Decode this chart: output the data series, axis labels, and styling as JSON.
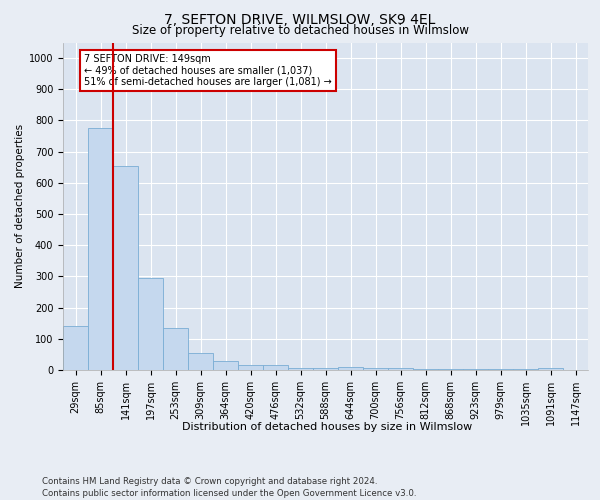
{
  "title": "7, SEFTON DRIVE, WILMSLOW, SK9 4EL",
  "subtitle": "Size of property relative to detached houses in Wilmslow",
  "xlabel": "Distribution of detached houses by size in Wilmslow",
  "ylabel": "Number of detached properties",
  "bin_labels": [
    "29sqm",
    "85sqm",
    "141sqm",
    "197sqm",
    "253sqm",
    "309sqm",
    "364sqm",
    "420sqm",
    "476sqm",
    "532sqm",
    "588sqm",
    "644sqm",
    "700sqm",
    "756sqm",
    "812sqm",
    "868sqm",
    "923sqm",
    "979sqm",
    "1035sqm",
    "1091sqm",
    "1147sqm"
  ],
  "bar_heights": [
    140,
    775,
    655,
    295,
    135,
    55,
    28,
    17,
    15,
    8,
    5,
    9,
    5,
    5,
    3,
    3,
    3,
    3,
    3,
    8,
    0
  ],
  "bar_color": "#c5d8ee",
  "bar_edge_color": "#7aadd4",
  "property_line_bin_index": 2,
  "property_line_color": "#cc0000",
  "annotation_text": "7 SEFTON DRIVE: 149sqm\n← 49% of detached houses are smaller (1,037)\n51% of semi-detached houses are larger (1,081) →",
  "annotation_box_facecolor": "#ffffff",
  "annotation_box_edgecolor": "#cc0000",
  "footer_text": "Contains HM Land Registry data © Crown copyright and database right 2024.\nContains public sector information licensed under the Open Government Licence v3.0.",
  "ylim": [
    0,
    1050
  ],
  "yticks": [
    0,
    100,
    200,
    300,
    400,
    500,
    600,
    700,
    800,
    900,
    1000
  ],
  "background_color": "#e8edf4",
  "plot_bg_color": "#dbe4f0",
  "title_fontsize": 10,
  "subtitle_fontsize": 8.5,
  "xlabel_fontsize": 8,
  "ylabel_fontsize": 7.5,
  "tick_fontsize": 7,
  "annotation_fontsize": 7,
  "footer_fontsize": 6.2
}
